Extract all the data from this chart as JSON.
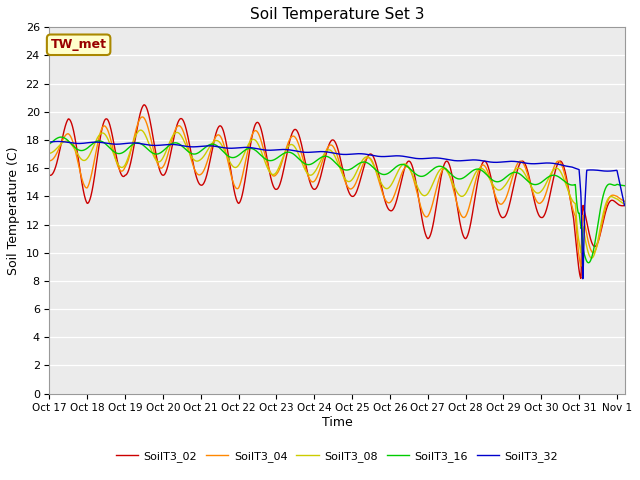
{
  "title": "Soil Temperature Set 3",
  "xlabel": "Time",
  "ylabel": "Soil Temperature (C)",
  "ylim": [
    0,
    26
  ],
  "fig_bg_color": "#ffffff",
  "plot_bg_color": "#ebebeb",
  "annotation_text": "TW_met",
  "annotation_bg": "#ffffcc",
  "annotation_border": "#aa8800",
  "series_colors": {
    "SoilT3_02": "#cc0000",
    "SoilT3_04": "#ff8800",
    "SoilT3_08": "#cccc00",
    "SoilT3_16": "#00cc00",
    "SoilT3_32": "#0000cc"
  },
  "legend_labels": [
    "SoilT3_02",
    "SoilT3_04",
    "SoilT3_08",
    "SoilT3_16",
    "SoilT3_32"
  ],
  "xtick_labels": [
    "Oct 17",
    "Oct 18",
    "Oct 19",
    "Oct 20",
    "Oct 21",
    "Oct 22",
    "Oct 23",
    "Oct 24",
    "Oct 25",
    "Oct 26",
    "Oct 27",
    "Oct 28",
    "Oct 29",
    "Oct 30",
    "Oct 31",
    "Nov 1"
  ],
  "line_width": 1.0
}
